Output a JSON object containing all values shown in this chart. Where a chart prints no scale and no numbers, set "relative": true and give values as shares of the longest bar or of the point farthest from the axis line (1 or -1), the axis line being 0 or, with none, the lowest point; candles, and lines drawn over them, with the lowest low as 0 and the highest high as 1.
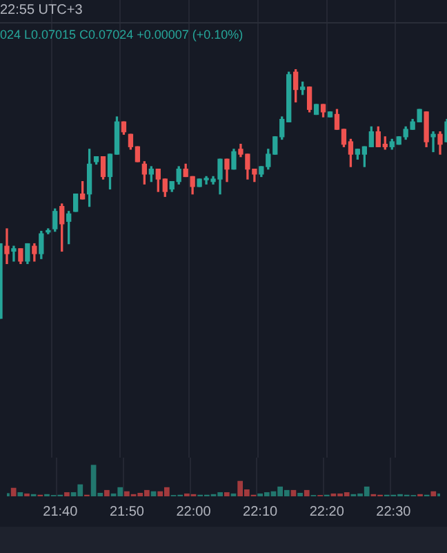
{
  "chart_data": [
    {
      "type": "candlestick",
      "title": "22:55 UTC+3",
      "annotations": [
        "024 L0.07015 C0.07024 +0.00007 (+0.10%)"
      ],
      "relative": true,
      "grid": "x",
      "legend": false,
      "categories": [
        null,
        null,
        null,
        null,
        null,
        null,
        null,
        null,
        null,
        null,
        null,
        null,
        null,
        null,
        null,
        null,
        null,
        null,
        null,
        null,
        null,
        null,
        null,
        null,
        null,
        null,
        null,
        null,
        null,
        null,
        null,
        null,
        null,
        null,
        null,
        null,
        null,
        null,
        null,
        null,
        null,
        null,
        null,
        null,
        null,
        null,
        null,
        null,
        null,
        null,
        null,
        null,
        null,
        null,
        null,
        null,
        null,
        null,
        null,
        null,
        null,
        null,
        null,
        null,
        null,
        null
      ],
      "ohlc": [
        [
          0,
          0.3,
          0,
          0.3
        ],
        [
          0.29,
          0.36,
          0.22,
          0.26
        ],
        [
          0.27,
          0.29,
          0.23,
          0.28
        ],
        [
          0.28,
          0.28,
          0.22,
          0.23
        ],
        [
          0.23,
          0.3,
          0.22,
          0.3
        ],
        [
          0.29,
          0.3,
          0.23,
          0.26
        ],
        [
          0.26,
          0.35,
          0.24,
          0.34
        ],
        [
          0.35,
          0.36,
          0.34,
          0.35
        ],
        [
          0.36,
          0.44,
          0.35,
          0.43
        ],
        [
          0.45,
          0.46,
          0.27,
          0.38
        ],
        [
          0.39,
          0.43,
          0.3,
          0.42
        ],
        [
          0.43,
          0.5,
          0.43,
          0.5
        ],
        [
          0.5,
          0.55,
          0.48,
          0.48
        ],
        [
          0.5,
          0.68,
          0.45,
          0.62
        ],
        [
          0.63,
          0.65,
          0.62,
          0.65
        ],
        [
          0.65,
          0.65,
          0.56,
          0.57
        ],
        [
          0.57,
          0.66,
          0.52,
          0.66
        ],
        [
          0.66,
          0.81,
          0.66,
          0.79
        ],
        [
          0.79,
          0.79,
          0.74,
          0.75
        ],
        [
          0.74,
          0.74,
          0.68,
          0.69
        ],
        [
          0.69,
          0.69,
          0.63,
          0.63
        ],
        [
          0.62,
          0.63,
          0.54,
          0.58
        ],
        [
          0.58,
          0.61,
          0.55,
          0.6
        ],
        [
          0.6,
          0.6,
          0.51,
          0.56
        ],
        [
          0.56,
          0.56,
          0.49,
          0.51
        ],
        [
          0.52,
          0.55,
          0.51,
          0.55
        ],
        [
          0.55,
          0.61,
          0.54,
          0.6
        ],
        [
          0.6,
          0.62,
          0.57,
          0.57
        ],
        [
          0.57,
          0.57,
          0.5,
          0.53
        ],
        [
          0.53,
          0.56,
          0.53,
          0.56
        ],
        [
          0.56,
          0.57,
          0.54,
          0.56
        ],
        [
          0.55,
          0.57,
          0.54,
          0.56
        ],
        [
          0.56,
          0.64,
          0.5,
          0.64
        ],
        [
          0.64,
          0.64,
          0.55,
          0.6
        ],
        [
          0.6,
          0.68,
          0.6,
          0.67
        ],
        [
          0.68,
          0.7,
          0.65,
          0.66
        ],
        [
          0.66,
          0.66,
          0.56,
          0.6
        ],
        [
          0.6,
          0.6,
          0.55,
          0.58
        ],
        [
          0.58,
          0.61,
          0.57,
          0.61
        ],
        [
          0.61,
          0.68,
          0.6,
          0.66
        ],
        [
          0.66,
          0.73,
          0.66,
          0.73
        ],
        [
          0.73,
          0.81,
          0.72,
          0.8
        ],
        [
          0.79,
          0.99,
          0.79,
          0.98
        ],
        [
          0.99,
          1,
          0.87,
          0.92
        ],
        [
          0.92,
          0.95,
          0.9,
          0.93
        ],
        [
          0.93,
          0.93,
          0.83,
          0.84
        ],
        [
          0.82,
          0.86,
          0.82,
          0.86
        ],
        [
          0.86,
          0.86,
          0.81,
          0.83
        ],
        [
          0.81,
          0.83,
          0.81,
          0.83
        ],
        [
          0.82,
          0.84,
          0.76,
          0.76
        ],
        [
          0.76,
          0.76,
          0.69,
          0.7
        ],
        [
          0.71,
          0.72,
          0.61,
          0.66
        ],
        [
          0.66,
          0.68,
          0.64,
          0.68
        ],
        [
          0.66,
          0.69,
          0.61,
          0.69
        ],
        [
          0.69,
          0.77,
          0.69,
          0.75
        ],
        [
          0.75,
          0.77,
          0.69,
          0.69
        ],
        [
          0.7,
          0.73,
          0.68,
          0.69
        ],
        [
          0.69,
          0.72,
          0.68,
          0.71
        ],
        [
          0.7,
          0.73,
          0.7,
          0.73
        ],
        [
          0.73,
          0.77,
          0.72,
          0.76
        ],
        [
          0.76,
          0.8,
          0.76,
          0.79
        ],
        [
          0.79,
          0.84,
          0.79,
          0.84
        ],
        [
          0.83,
          0.83,
          0.69,
          0.71
        ],
        [
          0.73,
          0.75,
          0.67,
          0.74
        ],
        [
          0.74,
          0.75,
          0.66,
          0.7
        ],
        [
          0.71,
          0.8,
          0.71,
          0.79
        ]
      ]
    },
    {
      "type": "bar",
      "relative": true,
      "grid": "x",
      "legend": false,
      "categories": [
        null,
        null,
        null,
        null,
        null,
        null,
        null,
        null,
        "21:40",
        null,
        null,
        null,
        null,
        null,
        null,
        null,
        null,
        null,
        "21:50",
        null,
        null,
        null,
        null,
        null,
        null,
        null,
        null,
        null,
        "22:00",
        null,
        null,
        null,
        null,
        null,
        null,
        null,
        null,
        null,
        "22:10",
        null,
        null,
        null,
        null,
        null,
        null,
        null,
        null,
        null,
        "22:20",
        null,
        null,
        null,
        null,
        null,
        null,
        null,
        null,
        null,
        "22:30",
        null,
        null,
        null,
        null,
        null,
        null,
        null
      ],
      "values": [
        0.1,
        0.27,
        0.13,
        0.09,
        0.07,
        0.05,
        0.07,
        0.04,
        0.05,
        0.13,
        0.13,
        0.38,
        0.05,
        1,
        0.11,
        0.2,
        0.09,
        0.29,
        0.16,
        0.07,
        0.11,
        0.2,
        0.16,
        0.16,
        0.29,
        0.04,
        0.05,
        0.09,
        0.07,
        0.05,
        0.05,
        0.07,
        0.13,
        0.13,
        0.09,
        0.49,
        0.22,
        0.05,
        0.09,
        0.13,
        0.16,
        0.31,
        0.2,
        0.2,
        0.11,
        0.2,
        0.04,
        0.04,
        0.05,
        0.09,
        0.09,
        0.13,
        0.07,
        0.09,
        0.31,
        0.07,
        0.05,
        0.05,
        0.05,
        0.07,
        0.05,
        0.04,
        0.07,
        0.05,
        0.16,
        0.09
      ],
      "colors": [
        "#22776e",
        "#a23a3d",
        "#22776e",
        "#a23a3d",
        "#22776e",
        "#a23a3d",
        "#22776e",
        "#22776e",
        "#22776e",
        "#a23a3d",
        "#22776e",
        "#22776e",
        "#a23a3d",
        "#22776e",
        "#22776e",
        "#a23a3d",
        "#22776e",
        "#22776e",
        "#a23a3d",
        "#a23a3d",
        "#a23a3d",
        "#a23a3d",
        "#22776e",
        "#a23a3d",
        "#a23a3d",
        "#22776e",
        "#22776e",
        "#a23a3d",
        "#a23a3d",
        "#22776e",
        "#22776e",
        "#22776e",
        "#22776e",
        "#a23a3d",
        "#22776e",
        "#a23a3d",
        "#a23a3d",
        "#a23a3d",
        "#22776e",
        "#22776e",
        "#22776e",
        "#22776e",
        "#22776e",
        "#a23a3d",
        "#22776e",
        "#a23a3d",
        "#22776e",
        "#a23a3d",
        "#22776e",
        "#a23a3d",
        "#a23a3d",
        "#a23a3d",
        "#22776e",
        "#22776e",
        "#22776e",
        "#a23a3d",
        "#a23a3d",
        "#22776e",
        "#22776e",
        "#22776e",
        "#22776e",
        "#22776e",
        "#a23a3d",
        "#22776e",
        "#a23a3d",
        "#22776e"
      ]
    }
  ]
}
